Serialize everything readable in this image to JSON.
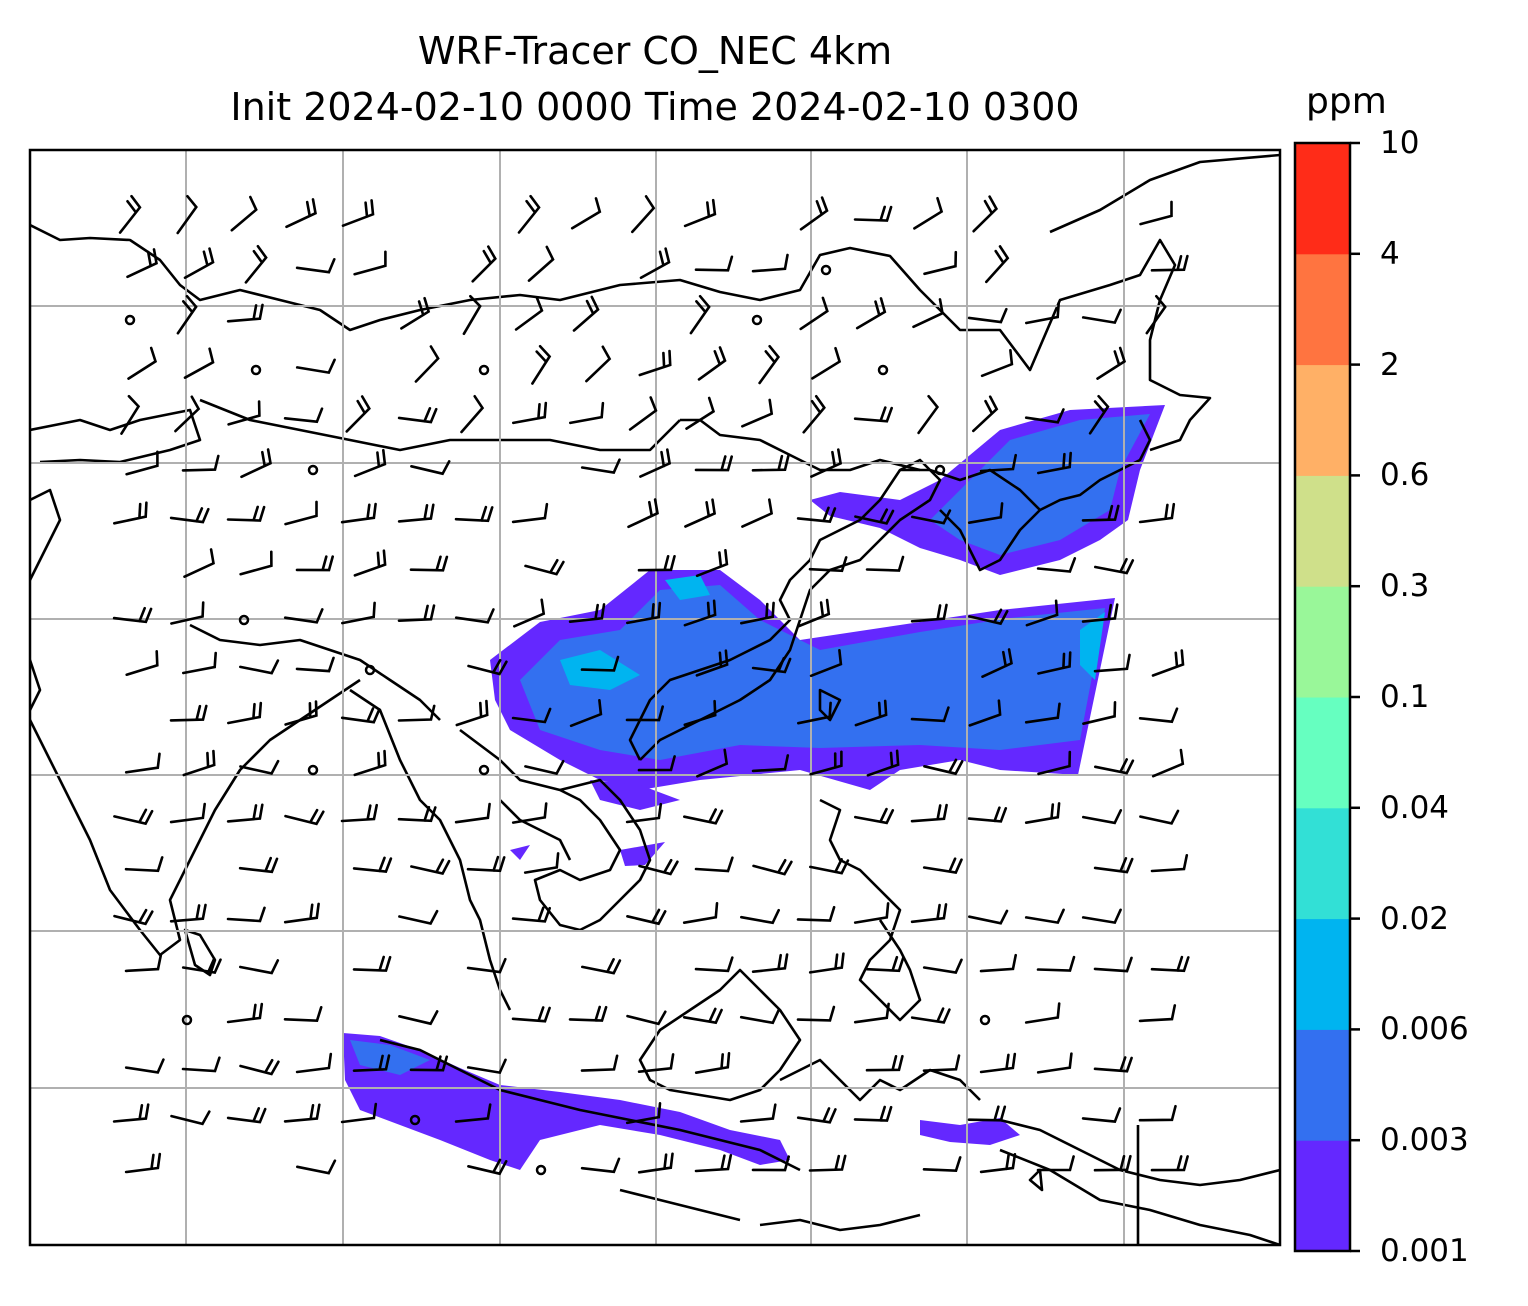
{
  "title": {
    "line1": "WRF-Tracer CO_NEC 4km",
    "line2": "Init 2024-02-10 0000 Time 2024-02-10 0300"
  },
  "colorbar": {
    "units": "ppm",
    "levels": [
      "0.001",
      "0.003",
      "0.006",
      "0.02",
      "0.04",
      "0.1",
      "0.3",
      "0.6",
      "2",
      "4",
      "10"
    ],
    "colors": [
      "#6428ff",
      "#3370f0",
      "#00b4f0",
      "#32e0d6",
      "#66ffc0",
      "#99f799",
      "#cfe08a",
      "#ffb066",
      "#ff7440",
      "#ff2c18"
    ]
  },
  "map": {
    "gridlines": true,
    "plume_colors": {
      "low": "#6428ff",
      "mid": "#3370f0",
      "high": "#00b4f0"
    },
    "coastline_color": "#000000",
    "barb_color": "#000000"
  }
}
